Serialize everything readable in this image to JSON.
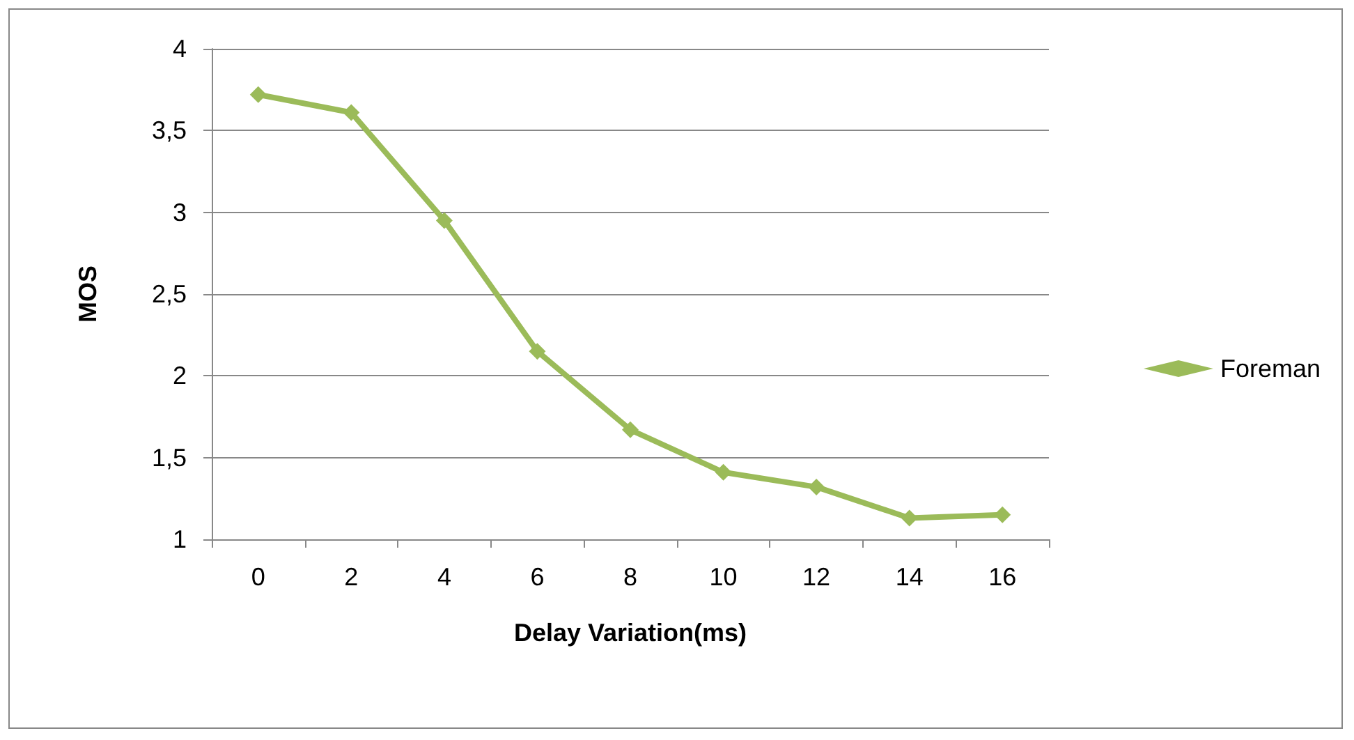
{
  "chart_data": {
    "type": "line",
    "xlabel": "Delay Variation(ms)",
    "ylabel": "MOS",
    "categories": [
      "0",
      "2",
      "4",
      "6",
      "8",
      "10",
      "12",
      "14",
      "16"
    ],
    "series": [
      {
        "name": "Foreman",
        "color": "#9bbb59",
        "values": [
          3.72,
          3.61,
          2.95,
          2.15,
          1.67,
          1.41,
          1.32,
          1.13,
          1.15
        ]
      }
    ],
    "ylim": [
      1,
      4
    ],
    "yticks": [
      1,
      {
        "value": 1.5,
        "label": "1,5"
      },
      2,
      {
        "value": 2.5,
        "label": "2,5"
      },
      3,
      {
        "value": 3.5,
        "label": "3,5"
      },
      4
    ],
    "grid": "y",
    "legend": "right",
    "marker": "diamond",
    "line_style": "solid"
  }
}
